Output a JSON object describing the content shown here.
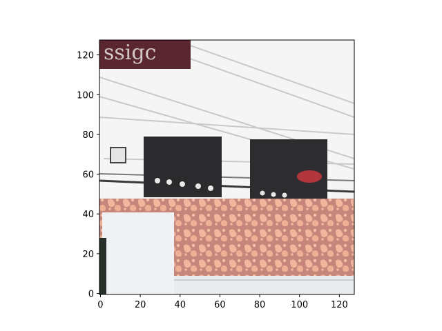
{
  "chart_data": {
    "type": "image",
    "title": "",
    "xlabel": "",
    "ylabel": "",
    "x_range": [
      -0.5,
      127.5
    ],
    "y_range": [
      127.5,
      -0.5
    ],
    "x_ticks": [
      0,
      20,
      40,
      60,
      80,
      100,
      120
    ],
    "y_ticks": [
      0,
      20,
      40,
      60,
      80,
      100,
      120
    ],
    "image_description_regions": [
      {
        "name": "sign-fragment",
        "x0": 0,
        "x1": 45,
        "y0": 0,
        "y1": 14,
        "color": "#5a2630"
      },
      {
        "name": "left-dark-panel",
        "x0": 22,
        "x1": 61,
        "y0": 49,
        "y1": 78,
        "color": "#2b2b2e"
      },
      {
        "name": "right-dark-panel",
        "x0": 76,
        "x1": 114,
        "y0": 50,
        "y1": 79,
        "color": "#2d2d30"
      },
      {
        "name": "patterned-wall",
        "x0": 0,
        "x1": 127,
        "y0": 80,
        "y1": 120,
        "color": "#c98b80"
      },
      {
        "name": "white-block",
        "x0": 2,
        "x1": 36,
        "y0": 86,
        "y1": 127,
        "color": "#eef2f5"
      },
      {
        "name": "bottom-strip",
        "x0": 36,
        "x1": 127,
        "y0": 118,
        "y1": 127,
        "color": "#e9ecef"
      }
    ]
  }
}
